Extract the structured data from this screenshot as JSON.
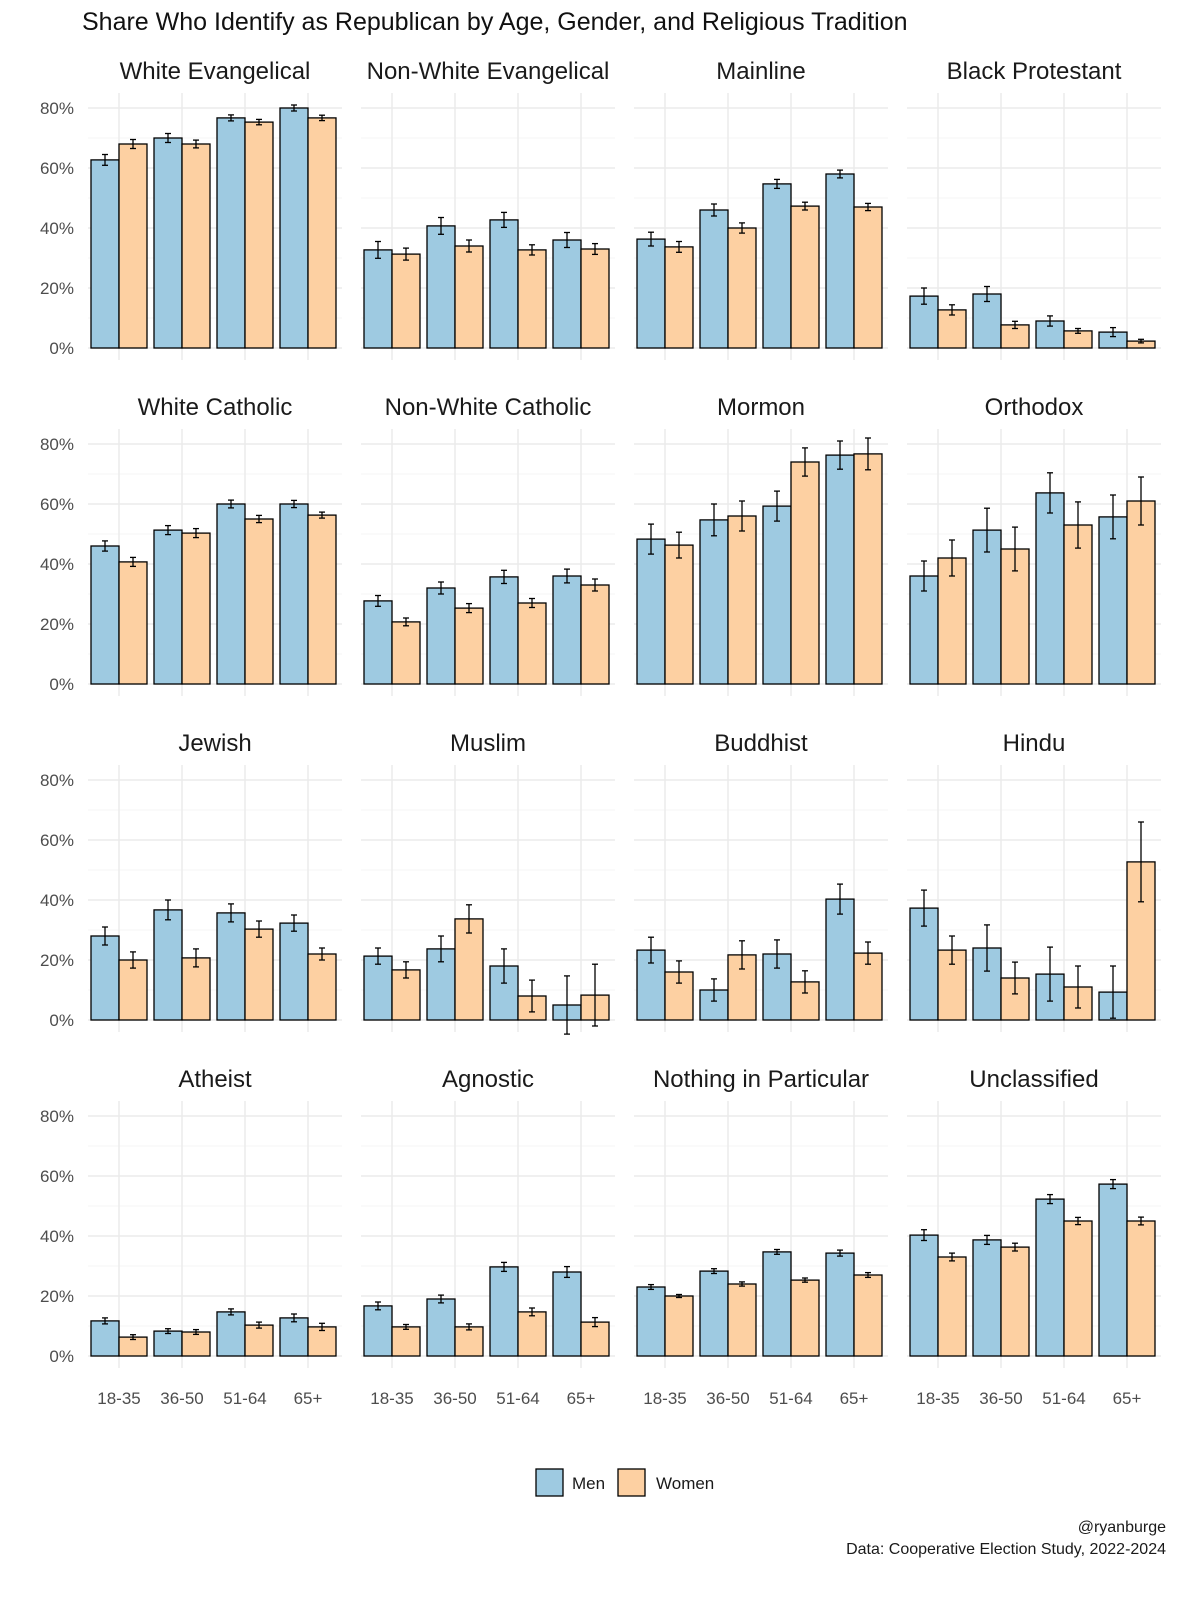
{
  "chart_data": {
    "type": "bar",
    "title": "Share Who Identify as Republican by Age, Gender, and Religious Tradition",
    "categories": [
      "18-35",
      "36-50",
      "51-64",
      "65+"
    ],
    "series_names": [
      "Men",
      "Women"
    ],
    "colors": {
      "Men": "#9ecae1",
      "Women": "#fdd0a2"
    },
    "y_ticks": [
      "0%",
      "20%",
      "40%",
      "60%",
      "80%"
    ],
    "ylim": [
      0,
      85
    ],
    "grid": true,
    "legend_position": "bottom",
    "panels": [
      {
        "name": "White Evangelical",
        "men": [
          62.7,
          70,
          76.7,
          80
        ],
        "women": [
          68,
          68,
          75.3,
          76.7
        ],
        "men_err": [
          1.8,
          1.5,
          1.0,
          1.0
        ],
        "women_err": [
          1.5,
          1.3,
          0.9,
          0.9
        ]
      },
      {
        "name": "Non-White Evangelical",
        "men": [
          32.7,
          40.7,
          42.7,
          36
        ],
        "women": [
          31.3,
          34,
          32.7,
          33
        ],
        "men_err": [
          2.8,
          2.8,
          2.5,
          2.5
        ],
        "women_err": [
          2.0,
          2.0,
          1.7,
          1.8
        ]
      },
      {
        "name": "Mainline",
        "men": [
          36.3,
          46,
          54.7,
          58
        ],
        "women": [
          33.7,
          40,
          47.3,
          47
        ],
        "men_err": [
          2.3,
          2.0,
          1.5,
          1.3
        ],
        "women_err": [
          1.8,
          1.7,
          1.3,
          1.2
        ]
      },
      {
        "name": "Black Protestant",
        "men": [
          17.3,
          18,
          9,
          5.3
        ],
        "women": [
          12.7,
          7.7,
          5.7,
          2.3
        ],
        "men_err": [
          2.7,
          2.5,
          1.7,
          1.5
        ],
        "women_err": [
          1.7,
          1.2,
          0.8,
          0.6
        ]
      },
      {
        "name": "White Catholic",
        "men": [
          46,
          51.3,
          60,
          60
        ],
        "women": [
          40.7,
          50.3,
          55,
          56.3
        ],
        "men_err": [
          1.7,
          1.5,
          1.3,
          1.2
        ],
        "women_err": [
          1.5,
          1.5,
          1.2,
          1.0
        ]
      },
      {
        "name": "Non-White Catholic",
        "men": [
          27.7,
          32,
          35.7,
          36
        ],
        "women": [
          20.7,
          25.3,
          27,
          33
        ],
        "men_err": [
          1.8,
          2.0,
          2.2,
          2.3
        ],
        "women_err": [
          1.3,
          1.5,
          1.5,
          2.0
        ]
      },
      {
        "name": "Mormon",
        "men": [
          48.3,
          54.7,
          59.3,
          76.3
        ],
        "women": [
          46.3,
          56,
          74,
          76.7
        ],
        "men_err": [
          5.0,
          5.3,
          5.0,
          4.7
        ],
        "women_err": [
          4.3,
          5.0,
          4.7,
          5.3
        ]
      },
      {
        "name": "Orthodox",
        "men": [
          36,
          51.3,
          63.7,
          55.7
        ],
        "women": [
          42,
          45,
          53,
          61
        ],
        "men_err": [
          5.0,
          7.3,
          6.7,
          7.3
        ],
        "women_err": [
          6.0,
          7.3,
          7.7,
          8.0
        ]
      },
      {
        "name": "Jewish",
        "men": [
          28,
          36.7,
          35.7,
          32.3
        ],
        "women": [
          20,
          20.7,
          30.3,
          22
        ],
        "men_err": [
          3.0,
          3.3,
          3.0,
          2.7
        ],
        "women_err": [
          2.7,
          3.0,
          2.7,
          2.0
        ]
      },
      {
        "name": "Muslim",
        "men": [
          21.3,
          23.7,
          18,
          5
        ],
        "women": [
          16.7,
          33.7,
          8,
          8.3
        ],
        "men_err": [
          2.7,
          4.3,
          5.7,
          9.7
        ],
        "women_err": [
          2.7,
          4.7,
          5.3,
          10.3
        ]
      },
      {
        "name": "Buddhist",
        "men": [
          23.3,
          10,
          22,
          40.3
        ],
        "women": [
          16,
          21.7,
          12.7,
          22.3
        ],
        "men_err": [
          4.3,
          3.7,
          4.7,
          5.0
        ],
        "women_err": [
          3.7,
          4.7,
          3.7,
          3.7
        ]
      },
      {
        "name": "Hindu",
        "men": [
          37.3,
          24,
          15.3,
          9.3
        ],
        "women": [
          23.3,
          14,
          11,
          52.7
        ],
        "men_err": [
          6.0,
          7.7,
          9.0,
          8.7
        ],
        "women_err": [
          4.7,
          5.3,
          7.0,
          13.3
        ]
      },
      {
        "name": "Atheist",
        "men": [
          11.7,
          8.3,
          14.7,
          12.7
        ],
        "women": [
          6.3,
          8,
          10.3,
          9.7
        ],
        "men_err": [
          1.0,
          0.8,
          1.0,
          1.3
        ],
        "women_err": [
          0.8,
          0.8,
          1.0,
          1.2
        ]
      },
      {
        "name": "Agnostic",
        "men": [
          16.7,
          19,
          29.7,
          28
        ],
        "women": [
          9.7,
          9.7,
          14.7,
          11.3
        ],
        "men_err": [
          1.3,
          1.3,
          1.5,
          1.8
        ],
        "women_err": [
          0.8,
          1.0,
          1.3,
          1.5
        ]
      },
      {
        "name": "Nothing in Particular",
        "men": [
          23,
          28.3,
          34.7,
          34.3
        ],
        "women": [
          20,
          24,
          25.3,
          27
        ],
        "men_err": [
          0.8,
          0.8,
          0.8,
          1.0
        ],
        "women_err": [
          0.5,
          0.7,
          0.7,
          0.8
        ]
      },
      {
        "name": "Unclassified",
        "men": [
          40.3,
          38.7,
          52.3,
          57.3
        ],
        "women": [
          33,
          36.3,
          45,
          45
        ],
        "men_err": [
          1.8,
          1.5,
          1.5,
          1.5
        ],
        "women_err": [
          1.3,
          1.3,
          1.2,
          1.3
        ]
      }
    ],
    "caption": [
      "@ryanburge",
      "Data: Cooperative Election Study, 2022-2024"
    ]
  }
}
